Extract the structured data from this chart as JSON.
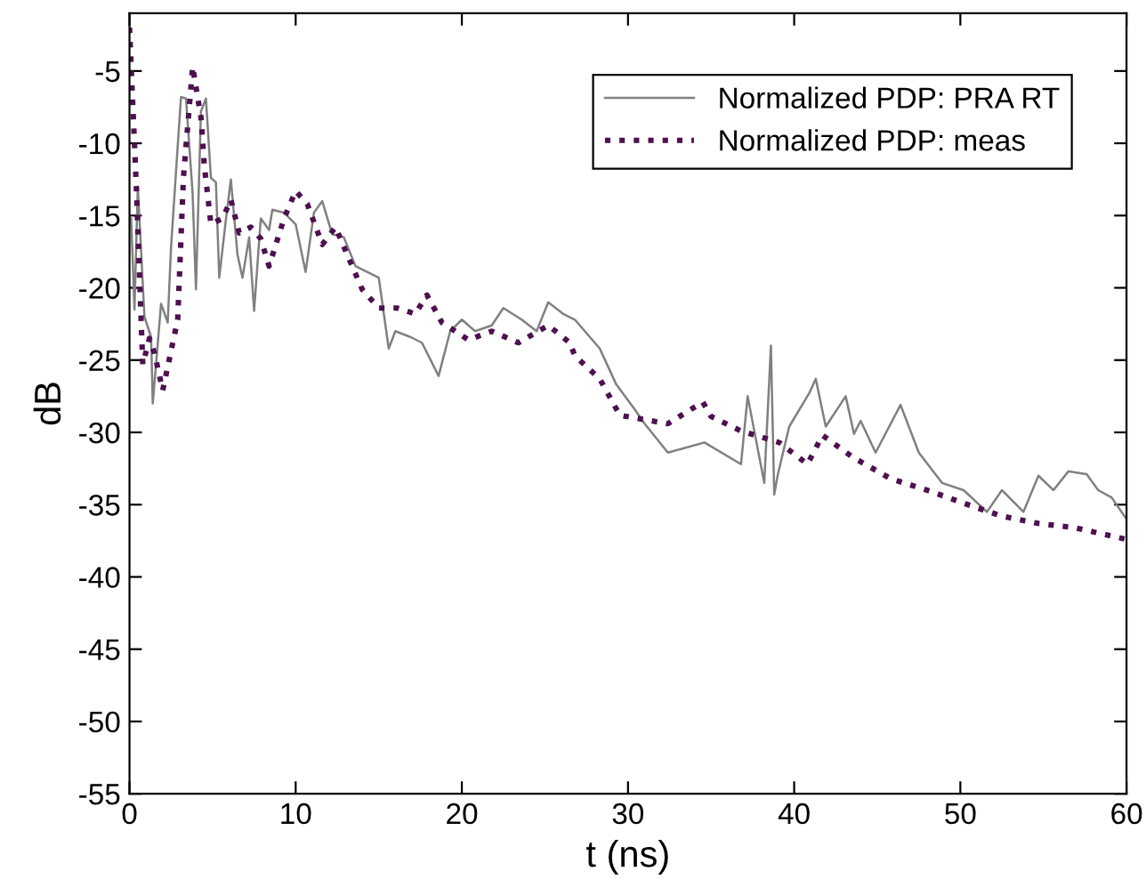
{
  "chart_data": {
    "type": "line",
    "xlabel": "t (ns)",
    "ylabel": "dB",
    "xlim": [
      0,
      60
    ],
    "ylim": [
      -55,
      -1
    ],
    "xticks": [
      0,
      10,
      20,
      30,
      40,
      50,
      60
    ],
    "yticks": [
      -55,
      -50,
      -45,
      -40,
      -35,
      -30,
      -25,
      -20,
      -15,
      -10,
      -5
    ],
    "grid": false,
    "legend": "top right",
    "marker": "none",
    "series": [
      {
        "name": "Normalized PDP: PRA RT",
        "color": "#808080",
        "line_style": "solid",
        "x": [
          0.1,
          0.3,
          0.5,
          0.9,
          1.3,
          1.4,
          1.9,
          2.3,
          2.5,
          2.9,
          3.1,
          3.4,
          3.8,
          4.0,
          4.3,
          4.6,
          4.9,
          5.2,
          5.4,
          5.8,
          6.1,
          6.5,
          6.8,
          7.2,
          7.5,
          7.9,
          8.4,
          8.6,
          9.3,
          10.0,
          10.6,
          11.1,
          11.6,
          12.2,
          12.9,
          13.6,
          14.3,
          15.0,
          15.6,
          16.0,
          16.9,
          17.6,
          18.6,
          19.3,
          20.0,
          20.8,
          21.8,
          22.5,
          23.6,
          24.5,
          25.2,
          26.1,
          26.8,
          28.3,
          29.3,
          30.4,
          31.0,
          32.4,
          34.6,
          36.8,
          37.2,
          38.2,
          38.6,
          38.8,
          39.0,
          39.7,
          40.9,
          41.3,
          41.9,
          43.1,
          43.6,
          44.0,
          44.9,
          46.4,
          47.5,
          48.9,
          50.2,
          51.6,
          52.5,
          53.8,
          54.7,
          55.6,
          56.5,
          57.6,
          58.3,
          59.1,
          60.0
        ],
        "values": [
          -15.2,
          -21.5,
          -13.0,
          -22.0,
          -23.4,
          -28.0,
          -21.1,
          -22.4,
          -17.2,
          -10.2,
          -6.8,
          -6.9,
          -13.5,
          -20.1,
          -7.8,
          -6.9,
          -12.4,
          -12.7,
          -19.3,
          -15.3,
          -12.5,
          -17.7,
          -19.3,
          -16.5,
          -21.6,
          -15.2,
          -16.0,
          -14.6,
          -14.8,
          -15.6,
          -18.9,
          -14.8,
          -14.0,
          -16.3,
          -16.5,
          -18.5,
          -18.9,
          -19.3,
          -24.2,
          -23.0,
          -23.4,
          -23.8,
          -26.1,
          -23.0,
          -22.2,
          -23.0,
          -22.6,
          -21.4,
          -22.2,
          -23.0,
          -21.0,
          -21.8,
          -22.2,
          -24.2,
          -26.7,
          -28.4,
          -29.4,
          -31.4,
          -30.7,
          -32.2,
          -27.5,
          -33.5,
          -24.0,
          -34.3,
          -33.0,
          -29.6,
          -27.3,
          -26.3,
          -29.6,
          -27.5,
          -30.1,
          -29.2,
          -31.4,
          -28.1,
          -31.4,
          -33.5,
          -34.0,
          -35.5,
          -34.0,
          -35.5,
          -33.0,
          -34.0,
          -32.7,
          -32.9,
          -34.0,
          -34.5,
          -36.0
        ]
      },
      {
        "name": "Normalized PDP: meas",
        "color": "#4d1050",
        "line_style": "dotted",
        "x": [
          0.0,
          0.4,
          0.75,
          0.8,
          1.2,
          1.5,
          2.0,
          2.9,
          3.25,
          3.8,
          4.3,
          4.5,
          4.9,
          5.6,
          6.1,
          6.6,
          7.3,
          7.9,
          8.4,
          9.3,
          10.0,
          10.7,
          11.6,
          12.4,
          13.1,
          14.0,
          15.0,
          16.1,
          17.2,
          17.9,
          18.8,
          20.4,
          21.8,
          23.4,
          25.2,
          26.5,
          26.8,
          28.3,
          29.5,
          29.9,
          32.4,
          34.5,
          35.0,
          36.8,
          39.1,
          40.8,
          41.7,
          43.5,
          45.8,
          48.0,
          50.2,
          52.5,
          54.7,
          56.9,
          60.0
        ],
        "values": [
          -2.0,
          -12.7,
          -23.8,
          -25.3,
          -23.5,
          -24.5,
          -27.1,
          -22.2,
          -12.3,
          -4.7,
          -8.2,
          -11.5,
          -15.6,
          -15.2,
          -13.9,
          -16.2,
          -15.8,
          -16.6,
          -18.5,
          -15.2,
          -13.3,
          -14.2,
          -17.0,
          -15.8,
          -17.7,
          -20.1,
          -21.4,
          -21.4,
          -21.8,
          -20.5,
          -22.4,
          -23.6,
          -23.0,
          -23.8,
          -22.6,
          -23.8,
          -24.7,
          -26.3,
          -28.8,
          -28.9,
          -29.4,
          -27.9,
          -28.9,
          -29.9,
          -30.7,
          -32.2,
          -30.2,
          -31.7,
          -33.2,
          -34.0,
          -34.9,
          -35.8,
          -36.3,
          -36.6,
          -37.4
        ]
      }
    ]
  }
}
